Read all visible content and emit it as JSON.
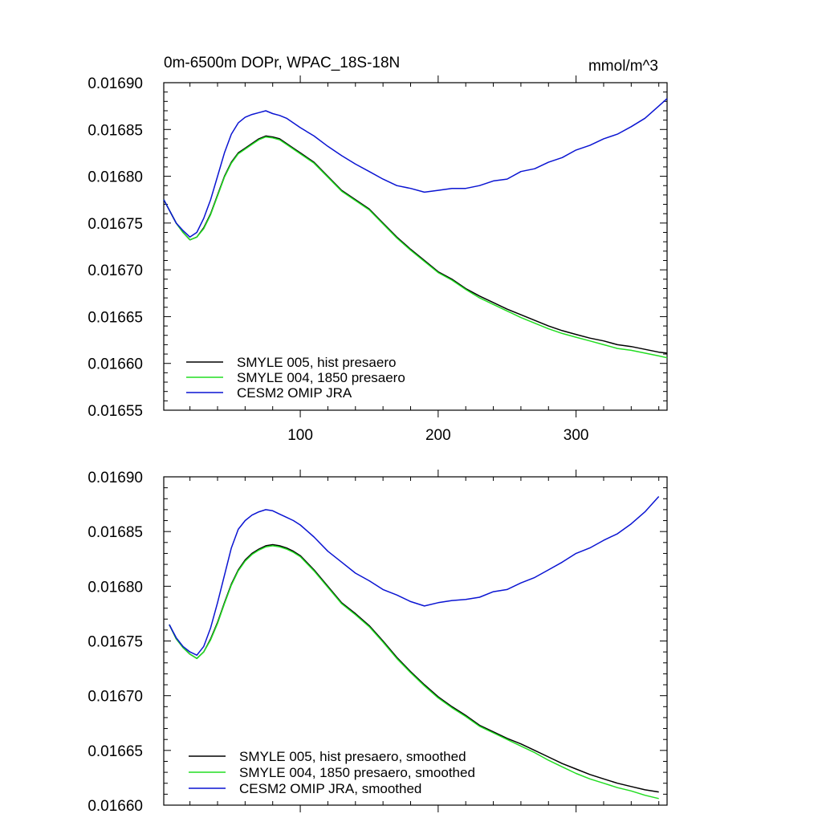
{
  "figure": {
    "title_left": "0m-6500m DOPr, WPAC_18S-18N",
    "title_right": "mmol/m^3"
  },
  "chart_data": [
    {
      "type": "line",
      "title": "0m-6500m DOPr, WPAC_18S-18N",
      "units": "mmol/m^3",
      "xlabel": "",
      "ylabel": "",
      "xlim": [
        1,
        366
      ],
      "ylim": [
        0.01655,
        0.0169
      ],
      "x_ticks": [
        100,
        200,
        300
      ],
      "x_tick_labels": [
        "100",
        "200",
        "300"
      ],
      "y_ticks": [
        0.01655,
        0.0166,
        0.01665,
        0.0167,
        0.01675,
        0.0168,
        0.01685,
        0.0169
      ],
      "y_tick_labels": [
        "0.01655",
        "0.01660",
        "0.01665",
        "0.01670",
        "0.01675",
        "0.01680",
        "0.01685",
        "0.01690"
      ],
      "legend_position": "bottom-left",
      "grid": false,
      "x": [
        1,
        10,
        15,
        20,
        25,
        30,
        35,
        40,
        45,
        50,
        55,
        60,
        65,
        70,
        75,
        80,
        85,
        90,
        95,
        100,
        110,
        120,
        130,
        140,
        150,
        160,
        170,
        180,
        190,
        200,
        210,
        220,
        230,
        240,
        250,
        260,
        270,
        280,
        290,
        300,
        310,
        320,
        330,
        340,
        350,
        360,
        366
      ],
      "series": [
        {
          "name": "SMYLE 005, hist presaero",
          "color": "#000000",
          "values": [
            0.016775,
            0.01675,
            0.01674,
            0.016732,
            0.016735,
            0.016745,
            0.01676,
            0.01678,
            0.0168,
            0.016815,
            0.016825,
            0.01683,
            0.016835,
            0.01684,
            0.016843,
            0.016842,
            0.01684,
            0.016835,
            0.01683,
            0.016825,
            0.016815,
            0.0168,
            0.016785,
            0.016775,
            0.016765,
            0.01675,
            0.016735,
            0.016722,
            0.01671,
            0.016698,
            0.01669,
            0.01668,
            0.016672,
            0.016665,
            0.016658,
            0.016652,
            0.016646,
            0.01664,
            0.016635,
            0.016631,
            0.016627,
            0.016624,
            0.01662,
            0.016618,
            0.016615,
            0.016612,
            0.016611
          ]
        },
        {
          "name": "SMYLE 004, 1850 presaero",
          "color": "#22dd22",
          "values": [
            0.016775,
            0.01675,
            0.01674,
            0.016732,
            0.016735,
            0.016744,
            0.016759,
            0.016779,
            0.016799,
            0.016814,
            0.016824,
            0.016829,
            0.016834,
            0.016839,
            0.016842,
            0.016841,
            0.016839,
            0.016834,
            0.016829,
            0.016824,
            0.016814,
            0.016799,
            0.016784,
            0.016774,
            0.016764,
            0.016749,
            0.016734,
            0.016721,
            0.016709,
            0.016697,
            0.016689,
            0.016679,
            0.01667,
            0.016663,
            0.016656,
            0.016649,
            0.016643,
            0.016637,
            0.016632,
            0.016628,
            0.016624,
            0.01662,
            0.016616,
            0.016614,
            0.016611,
            0.016608,
            0.016606
          ]
        },
        {
          "name": "CESM2 OMIP JRA",
          "color": "#0a14d2",
          "values": [
            0.016775,
            0.01675,
            0.016742,
            0.016735,
            0.01674,
            0.016755,
            0.016775,
            0.0168,
            0.016825,
            0.016845,
            0.016857,
            0.016863,
            0.016866,
            0.016868,
            0.01687,
            0.016867,
            0.016865,
            0.016862,
            0.016857,
            0.016852,
            0.016843,
            0.016832,
            0.016822,
            0.016813,
            0.016805,
            0.016797,
            0.01679,
            0.016787,
            0.016783,
            0.016785,
            0.016787,
            0.016787,
            0.01679,
            0.016795,
            0.016797,
            0.016805,
            0.016808,
            0.016815,
            0.01682,
            0.016828,
            0.016833,
            0.01684,
            0.016845,
            0.016853,
            0.016862,
            0.016875,
            0.016883
          ]
        }
      ]
    },
    {
      "type": "line",
      "title": "",
      "xlabel": "",
      "ylabel": "",
      "xlim": [
        1,
        366
      ],
      "ylim": [
        0.0166,
        0.0169
      ],
      "x_ticks": [
        100,
        200,
        300
      ],
      "y_ticks": [
        0.0166,
        0.01665,
        0.0167,
        0.01675,
        0.0168,
        0.01685,
        0.0169
      ],
      "y_tick_labels": [
        "0.01660",
        "0.01665",
        "0.01670",
        "0.01675",
        "0.01680",
        "0.01685",
        "0.01690"
      ],
      "legend_position": "bottom-left",
      "grid": false,
      "x": [
        5,
        10,
        15,
        20,
        25,
        30,
        35,
        40,
        45,
        50,
        55,
        60,
        65,
        70,
        75,
        80,
        85,
        90,
        95,
        100,
        110,
        120,
        130,
        140,
        150,
        160,
        170,
        180,
        190,
        200,
        210,
        220,
        230,
        240,
        250,
        260,
        270,
        280,
        290,
        300,
        310,
        320,
        330,
        340,
        350,
        360
      ],
      "series": [
        {
          "name": "SMYLE 005, hist presaero, smoothed",
          "color": "#000000",
          "values": [
            0.016765,
            0.016752,
            0.016744,
            0.016738,
            0.016734,
            0.01674,
            0.016752,
            0.016767,
            0.016785,
            0.016802,
            0.016815,
            0.016824,
            0.01683,
            0.016834,
            0.016837,
            0.016838,
            0.016837,
            0.016835,
            0.016832,
            0.016828,
            0.016815,
            0.0168,
            0.016785,
            0.016775,
            0.016764,
            0.01675,
            0.016735,
            0.016722,
            0.01671,
            0.016699,
            0.01669,
            0.016682,
            0.016673,
            0.016667,
            0.016661,
            0.016656,
            0.01665,
            0.016644,
            0.016638,
            0.016633,
            0.016628,
            0.016624,
            0.01662,
            0.016617,
            0.016614,
            0.016612
          ]
        },
        {
          "name": "SMYLE 004, 1850 presaero, smoothed",
          "color": "#22dd22",
          "values": [
            0.016765,
            0.016752,
            0.016744,
            0.016738,
            0.016734,
            0.01674,
            0.016751,
            0.016766,
            0.016784,
            0.016801,
            0.016814,
            0.016823,
            0.016829,
            0.016833,
            0.016836,
            0.016837,
            0.016836,
            0.016834,
            0.016831,
            0.016827,
            0.016814,
            0.016799,
            0.016784,
            0.016774,
            0.016763,
            0.016749,
            0.016734,
            0.016721,
            0.016709,
            0.016698,
            0.016689,
            0.016681,
            0.016672,
            0.016666,
            0.01666,
            0.016654,
            0.016648,
            0.016641,
            0.016635,
            0.016629,
            0.016624,
            0.01662,
            0.016616,
            0.016613,
            0.016609,
            0.016606
          ]
        },
        {
          "name": "CESM2 OMIP JRA, smoothed",
          "color": "#0a14d2",
          "values": [
            0.016765,
            0.016753,
            0.016745,
            0.01674,
            0.016737,
            0.016745,
            0.016762,
            0.016785,
            0.01681,
            0.016835,
            0.016852,
            0.01686,
            0.016865,
            0.016868,
            0.01687,
            0.016869,
            0.016866,
            0.016863,
            0.01686,
            0.016856,
            0.016845,
            0.016832,
            0.016822,
            0.016812,
            0.016805,
            0.016797,
            0.016792,
            0.016786,
            0.016782,
            0.016785,
            0.016787,
            0.016788,
            0.01679,
            0.016795,
            0.016797,
            0.016803,
            0.016808,
            0.016815,
            0.016822,
            0.01683,
            0.016835,
            0.016842,
            0.016848,
            0.016857,
            0.016868,
            0.016882
          ]
        }
      ]
    }
  ]
}
